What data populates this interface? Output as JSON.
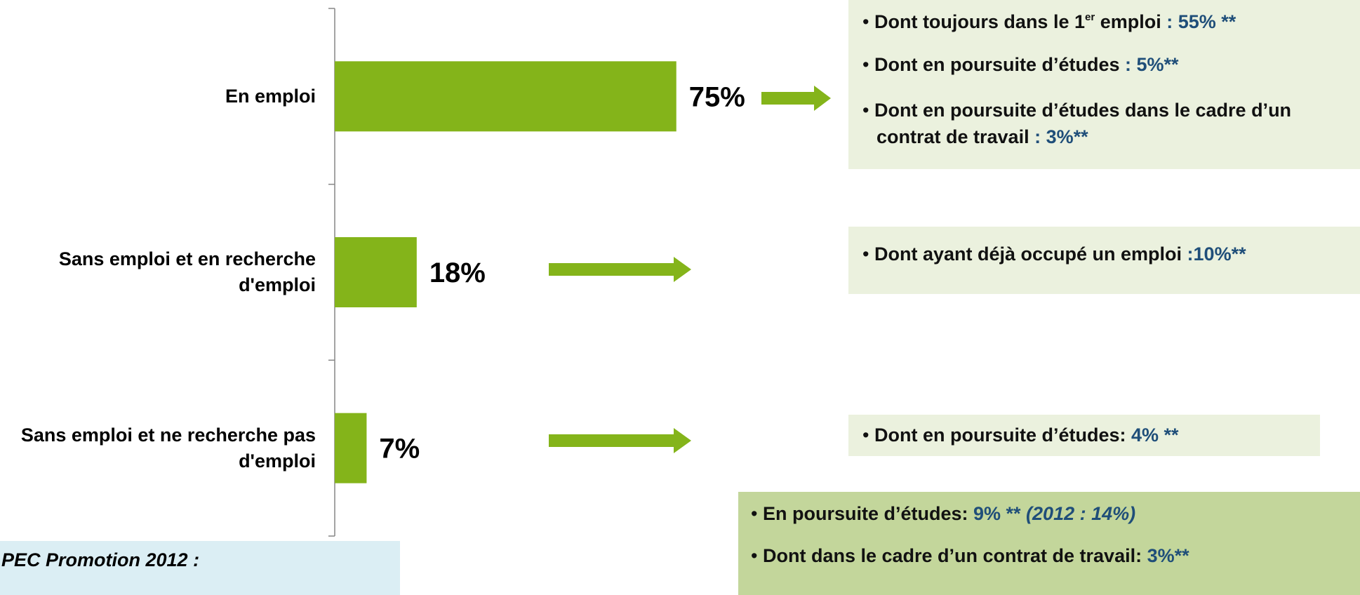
{
  "chart_data": {
    "type": "bar",
    "orientation": "horizontal",
    "categories": [
      "En emploi",
      "Sans emploi et en recherche d'emploi",
      "Sans emploi et ne recherche pas d'emploi"
    ],
    "values": [
      75,
      18,
      7
    ],
    "value_labels": [
      "75%",
      "18%",
      "7%"
    ],
    "color": "#84b41a",
    "xlim": [
      0,
      100
    ]
  },
  "notes": [
    {
      "color": "#ebf1de",
      "items": [
        [
          {
            "text": "Dont toujours dans le 1"
          },
          {
            "text": "er",
            "sup": true
          },
          {
            "text": " emploi  "
          },
          {
            "text": ": 55% **",
            "accent": true
          }
        ],
        [
          {
            "text": "Dont en poursuite d’études "
          },
          {
            "text": ": 5%**",
            "accent": true
          }
        ],
        [
          {
            "text": "Dont en poursuite d’études dans le cadre d’un contrat de travail "
          },
          {
            "text": ": 3%**",
            "accent": true
          }
        ]
      ]
    },
    {
      "color": "#ebf1de",
      "items": [
        [
          {
            "text": "Dont ayant déjà occupé un emploi "
          },
          {
            "text": ":10%**",
            "accent": true
          }
        ]
      ]
    },
    {
      "color": "#ebf1de",
      "items": [
        [
          {
            "text": "Dont en poursuite d’études:  "
          },
          {
            "text": "4% **",
            "accent": true
          }
        ]
      ]
    },
    {
      "color": "#c3d69b",
      "items": [
        [
          {
            "text": "En poursuite d’études: "
          },
          {
            "text": "9% ** ",
            "accent": true
          },
          {
            "text": "(2012 : 14%)",
            "accent": true,
            "italic": true
          }
        ],
        [
          {
            "text": "Dont dans le cadre d’un contrat de travail: "
          },
          {
            "text": "3%**",
            "accent": true
          }
        ]
      ]
    }
  ],
  "footer_box": {
    "color": "#dbeef4",
    "title": "PEC Promotion 2012 :"
  }
}
